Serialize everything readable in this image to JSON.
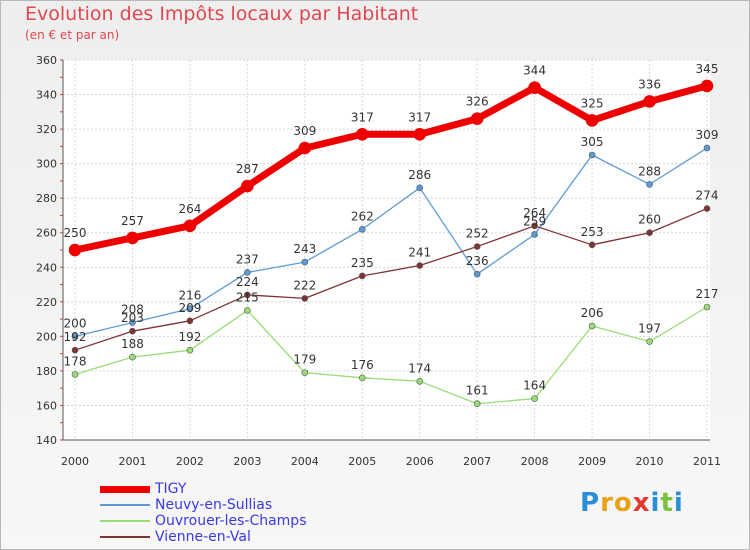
{
  "header": {
    "title": "Evolution des Impôts locaux par Habitant",
    "subtitle": "(en € et par an)"
  },
  "logo": {
    "letters": [
      "P",
      "r",
      "o",
      "x",
      "i",
      "t",
      "i"
    ],
    "colors": [
      "#2a8fd6",
      "#e8a21a",
      "#e8a21a",
      "#e23a2e",
      "#2a8fd6",
      "#7cc242",
      "#2a8fd6"
    ]
  },
  "chart_data": {
    "type": "line",
    "title": "Evolution des Impôts locaux par Habitant",
    "subtitle": "(en € et par an)",
    "xlabel": "",
    "ylabel": "",
    "x": [
      "2000",
      "2001",
      "2002",
      "2003",
      "2004",
      "2005",
      "2006",
      "2007",
      "2008",
      "2009",
      "2010",
      "2011"
    ],
    "ylim": [
      140,
      360
    ],
    "yticks": [
      140,
      160,
      180,
      200,
      220,
      240,
      260,
      280,
      300,
      320,
      340,
      360
    ],
    "grid": true,
    "legend_position": "bottom-left",
    "series": [
      {
        "name": "TIGY",
        "color": "#ee0000",
        "values": [
          250,
          257,
          264,
          287,
          309,
          317,
          317,
          326,
          344,
          325,
          336,
          345
        ]
      },
      {
        "name": "Neuvy-en-Sullias",
        "color": "#5b9bd5",
        "values": [
          200,
          208,
          216,
          237,
          243,
          262,
          286,
          236,
          259,
          305,
          288,
          309
        ]
      },
      {
        "name": "Ouvrouer-les-Champs",
        "color": "#99dd77",
        "values": [
          178,
          188,
          192,
          215,
          179,
          176,
          174,
          161,
          164,
          206,
          197,
          217
        ]
      },
      {
        "name": "Vienne-en-Val",
        "color": "#803333",
        "values": [
          192,
          203,
          209,
          224,
          222,
          235,
          241,
          252,
          264,
          253,
          260,
          274
        ]
      }
    ]
  }
}
